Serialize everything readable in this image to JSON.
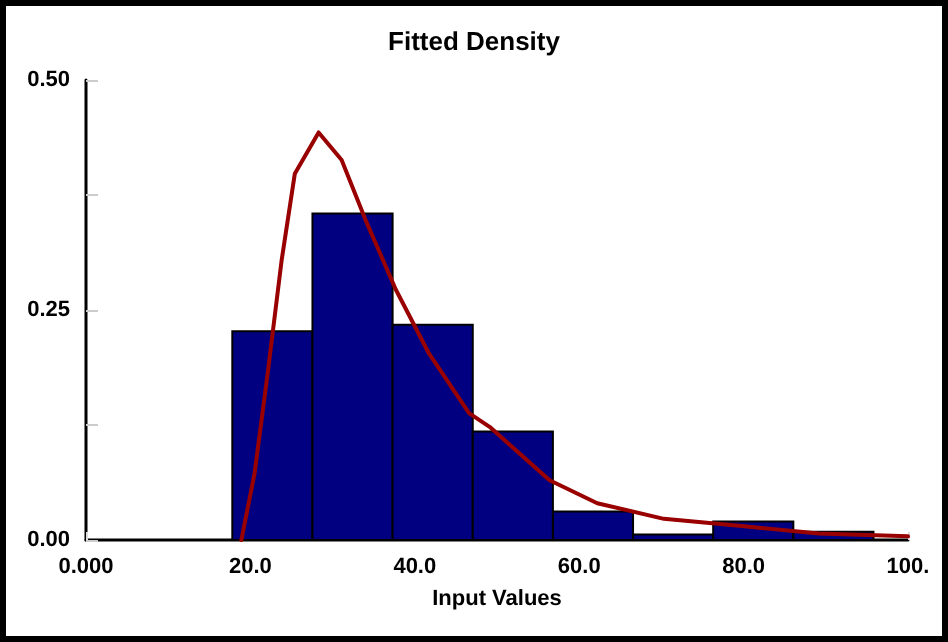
{
  "chart_data": {
    "type": "histogram",
    "title": "Fitted Density",
    "xlabel": "Input Values",
    "xlim": [
      0,
      100
    ],
    "xticks": [
      {
        "value": 0,
        "label": "0.000"
      },
      {
        "value": 20,
        "label": "20.0"
      },
      {
        "value": 40,
        "label": "40.0"
      },
      {
        "value": 60,
        "label": "60.0"
      },
      {
        "value": 80,
        "label": "80.0"
      },
      {
        "value": 100,
        "label": "100."
      }
    ],
    "ylim": [
      0,
      0.5
    ],
    "yticks": [
      {
        "value": 0,
        "label": "0.00"
      },
      {
        "value": 0.125,
        "label": null
      },
      {
        "value": 0.25,
        "label": "0.25"
      },
      {
        "value": 0.375,
        "label": null
      },
      {
        "value": 0.5,
        "label": "0.50"
      }
    ],
    "grid": false,
    "series": [
      {
        "color": "#000080",
        "bins": [
          17.8,
          27.55,
          37.3,
          47.05,
          56.8,
          66.55,
          76.3,
          86.05,
          95.8
        ],
        "values": [
          0.227,
          0.355,
          0.234,
          0.118,
          0.031,
          0.006,
          0.02,
          0.009
        ]
      },
      {
        "type": "line",
        "color": "#990000",
        "marker": "none",
        "line_style": "solid",
        "x": [
          18.9,
          20.5,
          22.1,
          23.8,
          25.4,
          28.3,
          31.1,
          34.0,
          37.7,
          41.7,
          46.6,
          49.1,
          56.4,
          62.2,
          70.3,
          80.1,
          89.1,
          100
        ],
        "values": [
          0,
          0.072,
          0.181,
          0.304,
          0.398,
          0.443,
          0.413,
          0.348,
          0.272,
          0.203,
          0.138,
          0.123,
          0.065,
          0.04,
          0.023,
          0.015,
          0.007,
          0.004
        ]
      }
    ]
  }
}
